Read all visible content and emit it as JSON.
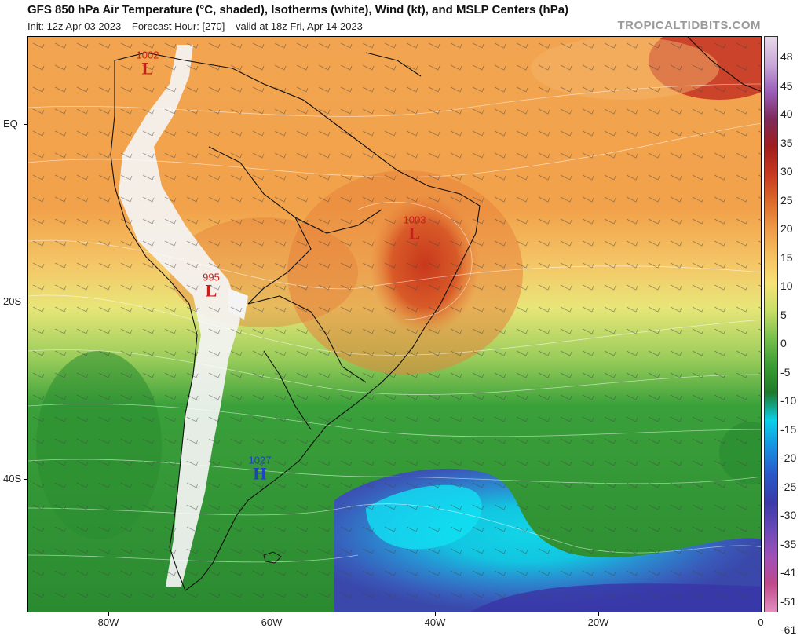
{
  "title": "GFS 850 hPa Air Temperature (°C, shaded), Isotherms (white), Wind (kt), and MSLP Centers (hPa)",
  "init": "Init: 12z Apr 03 2023",
  "forecast_hour": "Forecast Hour: [270]",
  "valid": "valid at 18z Fri, Apr 14 2023",
  "credit": "TROPICALTIDBITS.COM",
  "lat_labels": [
    "EQ",
    "20S",
    "40S"
  ],
  "lon_labels": [
    "80W",
    "60W",
    "40W",
    "20W",
    "0"
  ],
  "colorbar": {
    "labels": [
      "48",
      "45",
      "40",
      "35",
      "30",
      "25",
      "20",
      "15",
      "10",
      "5",
      "0",
      "-5",
      "-10",
      "-15",
      "-20",
      "-25",
      "-30",
      "-35",
      "-41",
      "-51",
      "-61"
    ],
    "colors": [
      "#e8d8e8",
      "#c8a8d8",
      "#9a5fb8",
      "#7e2a5a",
      "#a01e1e",
      "#c83820",
      "#dc6a2a",
      "#ee9a48",
      "#f6c060",
      "#f6e276",
      "#c8de68",
      "#78c04c",
      "#3a9e34",
      "#1f7a2a",
      "#0ad0e8",
      "#1890e0",
      "#2a58c8",
      "#3a3aa8",
      "#6a4ab8",
      "#a050b8",
      "#c04a8a",
      "#e090c0"
    ]
  },
  "pressure_centers": [
    {
      "value": "1002",
      "type": "L",
      "color": "#c81e1e"
    },
    {
      "value": "1003",
      "type": "L",
      "color": "#c81e1e"
    },
    {
      "value": "995",
      "type": "L",
      "color": "#c81e1e"
    },
    {
      "value": "1027",
      "type": "H",
      "color": "#2040c8"
    }
  ]
}
